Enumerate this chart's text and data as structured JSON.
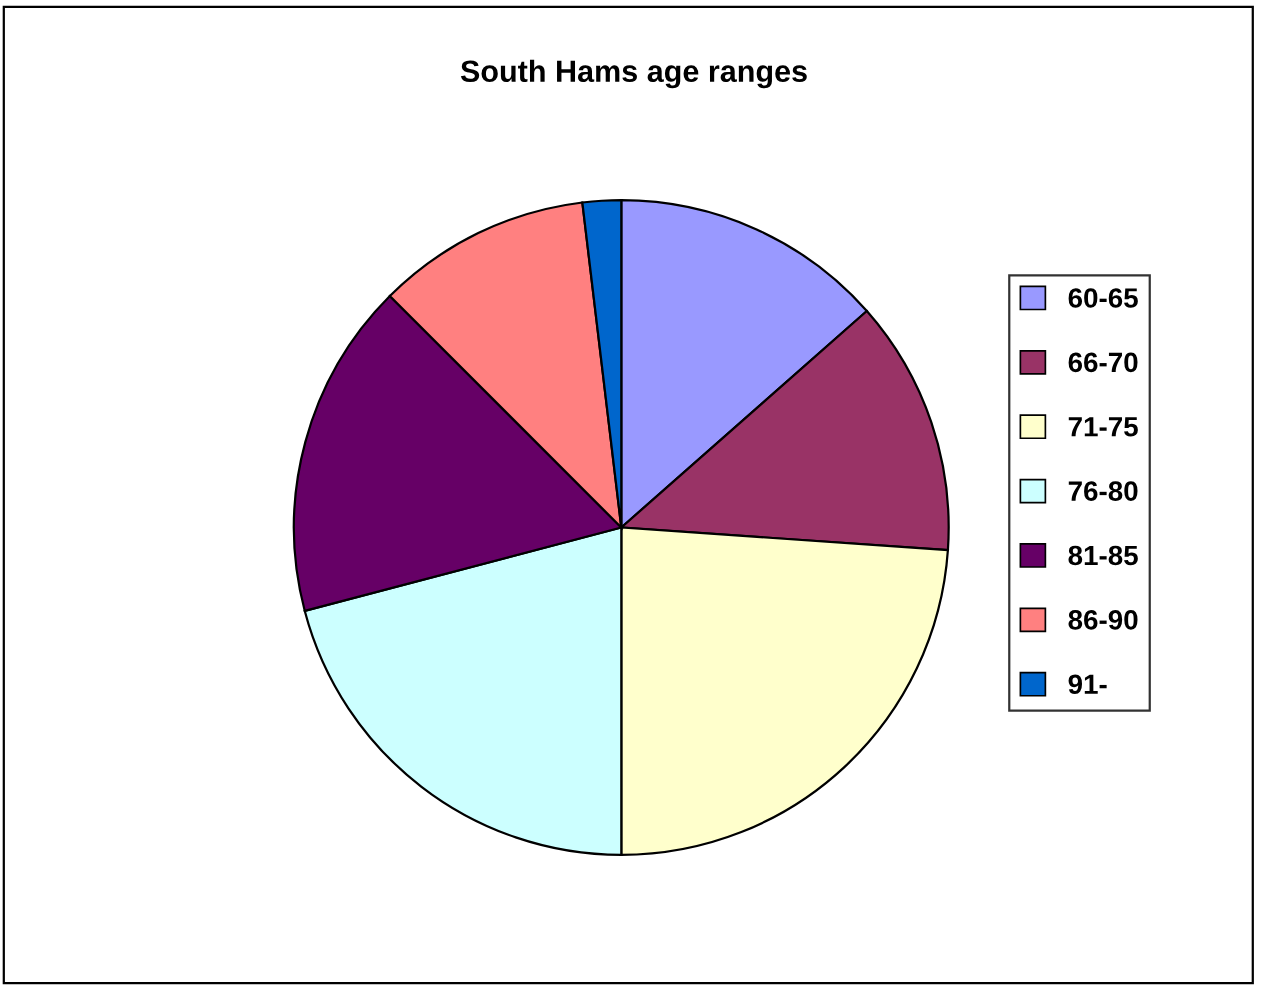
{
  "chart_data": {
    "type": "pie",
    "title": "South Hams age ranges",
    "categories": [
      "60-65",
      "66-70",
      "71-75",
      "76-80",
      "81-85",
      "86-90",
      "91-"
    ],
    "values": [
      13.5,
      12.6,
      23.9,
      20.9,
      16.6,
      10.6,
      1.9
    ],
    "colors": [
      "#9999ff",
      "#993366",
      "#ffffcc",
      "#ccffff",
      "#660066",
      "#ff8080",
      "#0066cc"
    ],
    "legend": "right"
  }
}
